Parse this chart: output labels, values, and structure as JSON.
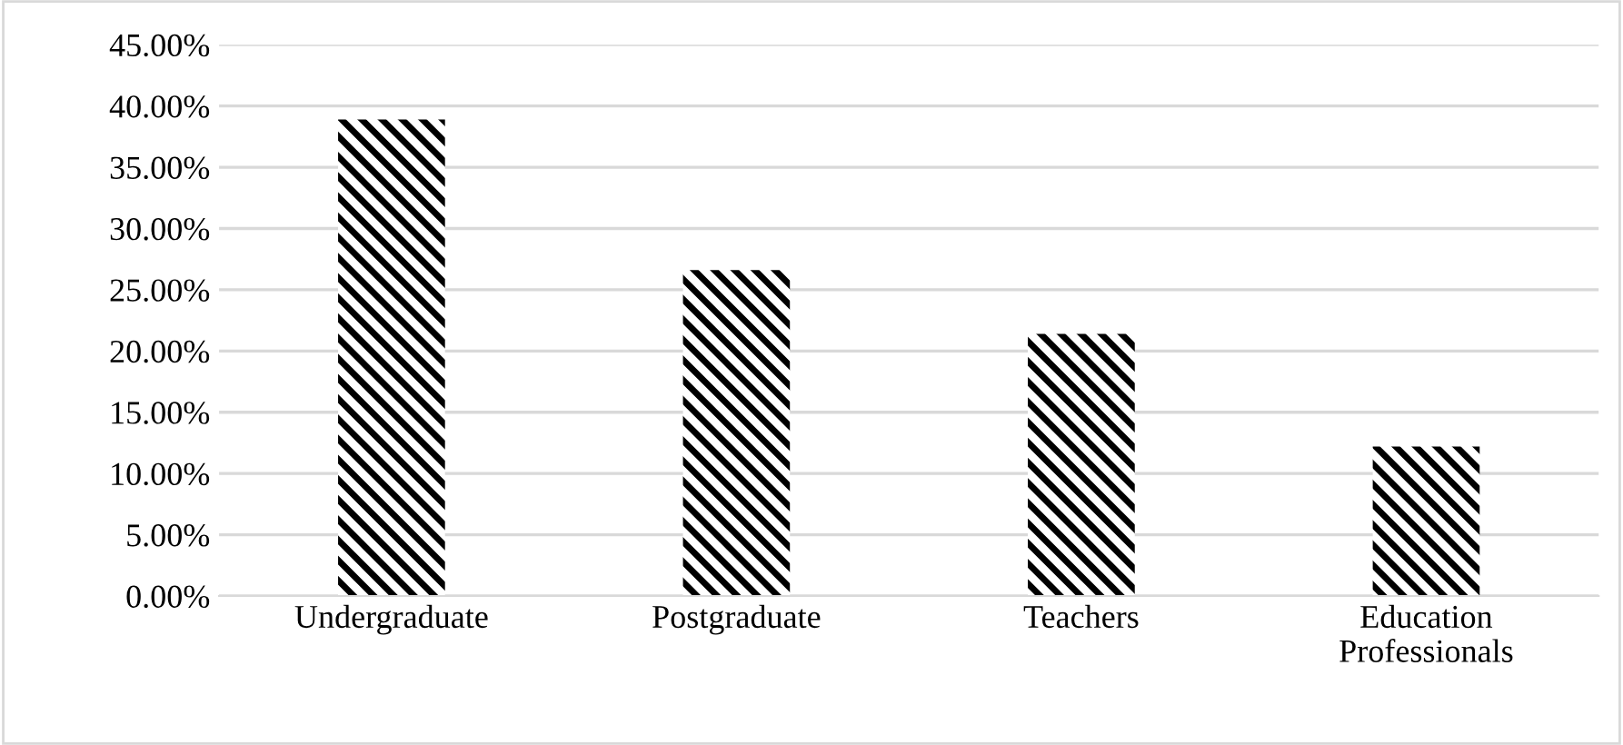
{
  "chart_data": {
    "type": "bar",
    "categories": [
      "Undergraduate",
      "Postgraduate",
      "Teachers",
      "Education\nProfessionals"
    ],
    "values": [
      38.9,
      26.6,
      21.4,
      12.2
    ],
    "color": "#000000",
    "ylim": [
      0,
      45
    ],
    "yticks": [
      {
        "value": 0,
        "label": "0.00%"
      },
      {
        "value": 5,
        "label": "5.00%"
      },
      {
        "value": 10,
        "label": "10.00%"
      },
      {
        "value": 15,
        "label": "15.00%"
      },
      {
        "value": 20,
        "label": "20.00%"
      },
      {
        "value": 25,
        "label": "25.00%"
      },
      {
        "value": 30,
        "label": "30.00%"
      },
      {
        "value": 35,
        "label": "35.00%"
      },
      {
        "value": 40,
        "label": "40.00%"
      },
      {
        "value": 45,
        "label": "45.00%"
      }
    ],
    "grid": "y",
    "legend": false
  }
}
